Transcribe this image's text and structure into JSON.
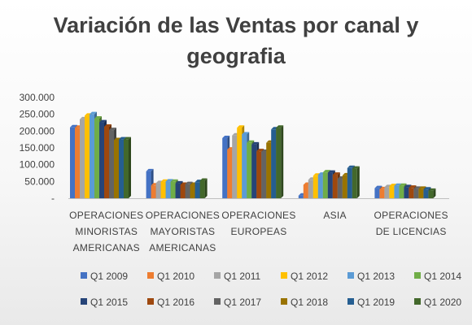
{
  "chart_data": {
    "type": "bar",
    "title_lines": [
      "Variación de las Ventas por canal y",
      "geografia"
    ],
    "categories": [
      [
        "OPERACIONES",
        "MINORISTAS",
        "AMERICANAS"
      ],
      [
        "OPERACIONES",
        "MAYORISTAS",
        "AMERICANAS"
      ],
      [
        "OPERACIONES",
        "EUROPEAS"
      ],
      [
        "ASIA"
      ],
      [
        "OPERACIONES",
        "DE LICENCIAS"
      ]
    ],
    "ylim": [
      0,
      300000
    ],
    "yticks": [
      0,
      50000,
      100000,
      150000,
      200000,
      250000,
      300000
    ],
    "ytick_labels": [
      "-",
      "50.000",
      "100.000",
      "150.000",
      "200.000",
      "250.000",
      "300.000"
    ],
    "grid": false,
    "legend_position": "bottom",
    "series": [
      {
        "name": "Q1 2009",
        "color": "#4472C4",
        "values": [
          211000,
          80000,
          179000,
          8000,
          30000
        ]
      },
      {
        "name": "Q1 2010",
        "color": "#ED7D31",
        "values": [
          210000,
          38000,
          145000,
          40000,
          27000
        ]
      },
      {
        "name": "Q1 2011",
        "color": "#A5A5A5",
        "values": [
          235000,
          45000,
          187000,
          55000,
          33000
        ]
      },
      {
        "name": "Q1 2012",
        "color": "#FFC000",
        "values": [
          246000,
          49000,
          210000,
          67000,
          36000
        ]
      },
      {
        "name": "Q1 2013",
        "color": "#5B9BD5",
        "values": [
          250000,
          50000,
          190000,
          70000,
          37000
        ]
      },
      {
        "name": "Q1 2014",
        "color": "#70AD47",
        "values": [
          237000,
          49000,
          165000,
          77000,
          37000
        ]
      },
      {
        "name": "Q1 2015",
        "color": "#264478",
        "values": [
          226000,
          44000,
          160000,
          76000,
          33000
        ]
      },
      {
        "name": "Q1 2016",
        "color": "#9E480E",
        "values": [
          213000,
          40000,
          140000,
          70000,
          31000
        ]
      },
      {
        "name": "Q1 2017",
        "color": "#636363",
        "values": [
          203000,
          42000,
          138000,
          58000,
          28000
        ]
      },
      {
        "name": "Q1 2018",
        "color": "#997300",
        "values": [
          173000,
          40000,
          165000,
          68000,
          28000
        ]
      },
      {
        "name": "Q1 2019",
        "color": "#255E91",
        "values": [
          175000,
          48000,
          205000,
          90000,
          26000
        ]
      },
      {
        "name": "Q1 2020",
        "color": "#43682B",
        "values": [
          175000,
          52000,
          210000,
          88000,
          22000
        ]
      }
    ]
  }
}
